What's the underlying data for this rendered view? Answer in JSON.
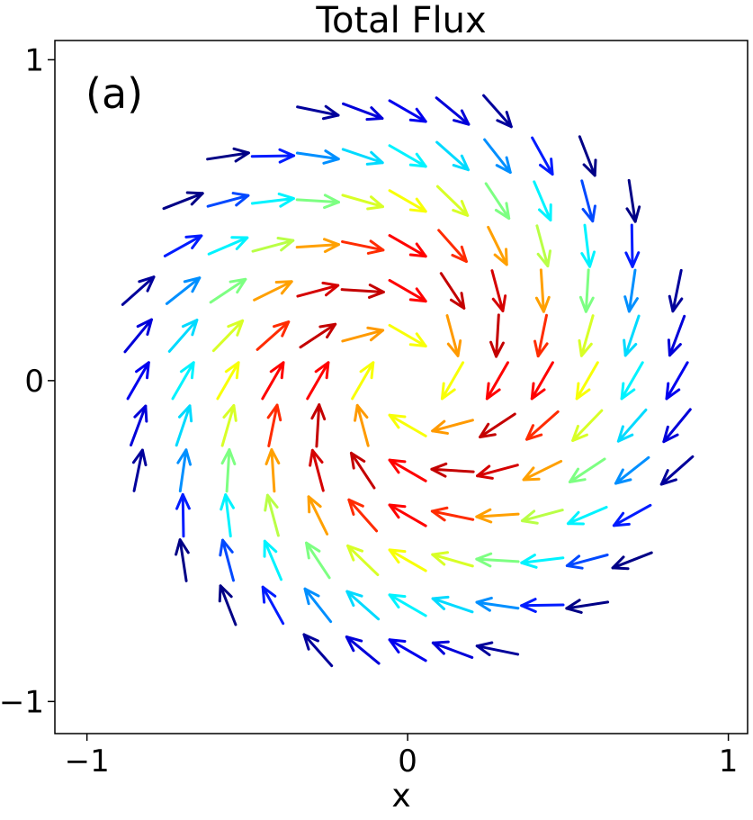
{
  "chart_data": {
    "type": "quiver",
    "title": "Total Flux",
    "panel_label": "(a)",
    "xlabel": "x",
    "ylabel": "",
    "xlim": [
      -1.1,
      1.06
    ],
    "ylim": [
      -1.1,
      1.06
    ],
    "xticks": [
      -1,
      0,
      1
    ],
    "xtick_labels": [
      "−1",
      "0",
      "1"
    ],
    "yticks": [
      -1,
      0,
      1
    ],
    "ytick_labels": [
      "−1",
      "0",
      "1"
    ],
    "grid": false,
    "colormap": "jet",
    "field": {
      "kind": "spiral-swirl",
      "grid_step": 0.14,
      "domain_radius": 0.91,
      "inner_radius": 0.12,
      "rotation": "clockwise",
      "inward_tilt_deg": 30,
      "arrow_length": 0.13,
      "color_peak_radius": 0.35,
      "color_falloff": 0.55
    }
  }
}
